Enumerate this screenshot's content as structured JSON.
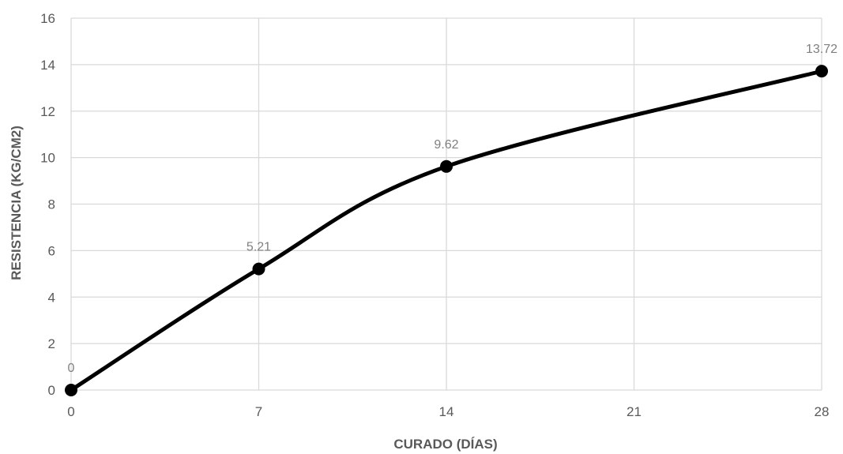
{
  "chart_data": {
    "type": "line",
    "title": "",
    "xlabel": "CURADO (DÍAS)",
    "ylabel": "RESISTENCIA (KG/CM2)",
    "x": [
      0,
      7,
      14,
      28
    ],
    "series": [
      {
        "values": [
          0,
          5.21,
          9.62,
          13.72
        ],
        "data_labels": [
          "0",
          "5.21",
          "9.62",
          "13.72"
        ],
        "color": "#000000",
        "smooth": true,
        "marker": "circle"
      }
    ],
    "xlim": [
      0,
      28
    ],
    "ylim": [
      0,
      16
    ],
    "xticks": [
      0,
      7,
      14,
      21,
      28
    ],
    "yticks": [
      0,
      2,
      4,
      6,
      8,
      10,
      12,
      14,
      16
    ],
    "xtick_labels": [
      "0",
      "7",
      "14",
      "21",
      "28"
    ],
    "ytick_labels": [
      "0",
      "2",
      "4",
      "6",
      "8",
      "10",
      "12",
      "14",
      "16"
    ],
    "grid": true,
    "legend": false,
    "grid_color": "#d9d9d9",
    "label_color": "#595959",
    "data_label_color": "#7f7f7f"
  }
}
